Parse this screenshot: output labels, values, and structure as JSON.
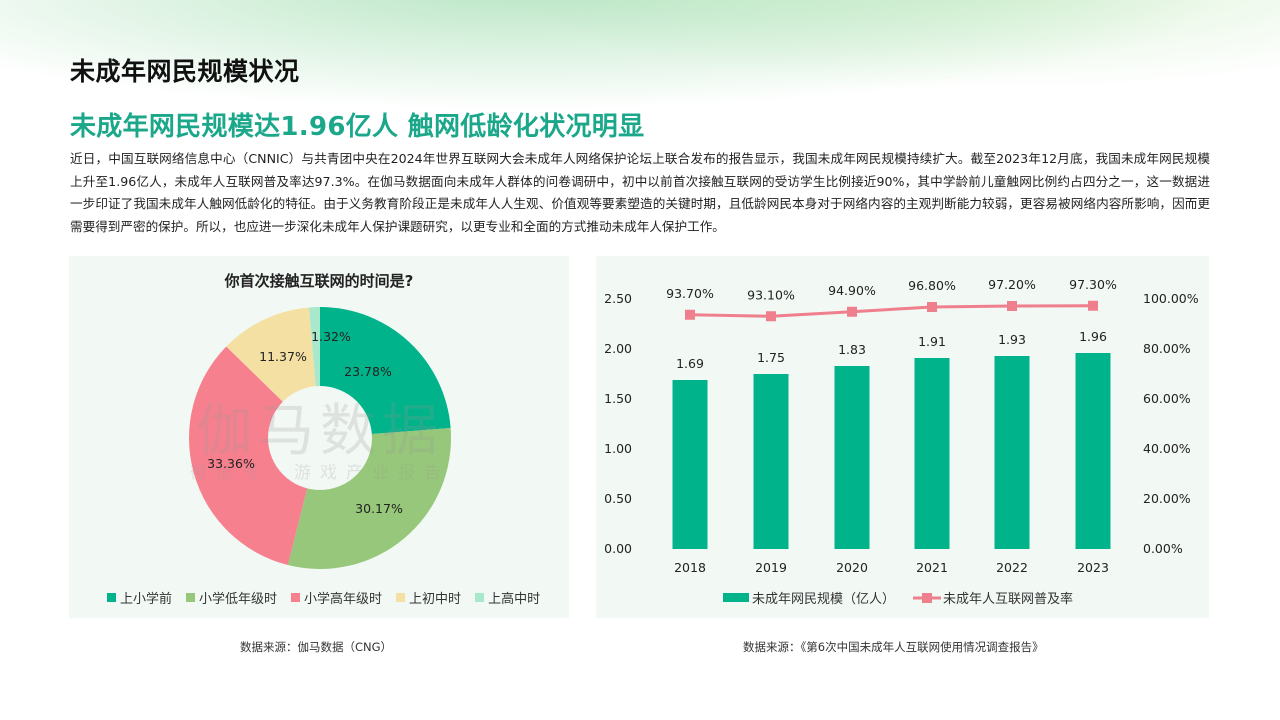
{
  "header": {
    "page_title": "未成年网民规模状况",
    "headline": "未成年网民规模达1.96亿人 触网低龄化状况明显",
    "body": "近日，中国互联网络信息中心（CNNIC）与共青团中央在2024年世界互联网大会未成年人网络保护论坛上联合发布的报告显示，我国未成年网民规模持续扩大。截至2023年12月底，我国未成年网民规模上升至1.96亿人，未成年人互联网普及率达97.3%。在伽马数据面向未成年人群体的问卷调研中，初中以前首次接触互联网的受访学生比例接近90%，其中学龄前儿童触网比例约占四分之一，这一数据进一步印证了我国未成年人触网低龄化的特征。由于义务教育阶段正是未成年人人生观、价值观等要素塑造的关键时期，且低龄网民本身对于网络内容的主观判断能力较弱，更容易被网络内容所影响，因而更需要得到严密的保护。所以，也应进一步深化未成年人保护课题研究，以更专业和全面的方式推动未成年人保护工作。"
  },
  "colors": {
    "accent": "#1aa78a",
    "teal": "#00b38a",
    "green": "#96c77a",
    "pink": "#f7808f",
    "yellow": "#f5e0a3",
    "mint": "#a8e8cc",
    "line": "#f07f8e",
    "panel_bg": "#f2f8f4"
  },
  "watermark": {
    "main": "伽马数据",
    "sub": "微信号：游戏产业报告"
  },
  "chart_data": [
    {
      "type": "pie",
      "title": "你首次接触互联网的时间是?",
      "donut": true,
      "categories": [
        "上小学前",
        "小学低年级时",
        "小学高年级时",
        "上初中时",
        "上高中时"
      ],
      "values": [
        23.78,
        30.17,
        33.36,
        11.37,
        1.32
      ],
      "labels": [
        "23.78%",
        "30.17%",
        "33.36%",
        "11.37%",
        "1.32%"
      ],
      "colors": [
        "#00b38a",
        "#96c77a",
        "#f7808f",
        "#f5e0a3",
        "#a8e8cc"
      ],
      "legend_position": "bottom",
      "source": "数据来源：伽马数据（CNG）"
    },
    {
      "type": "bar",
      "title": "",
      "categories": [
        "2018",
        "2019",
        "2020",
        "2021",
        "2022",
        "2023"
      ],
      "series": [
        {
          "name": "未成年网民规模（亿人）",
          "type": "bar",
          "axis": "left",
          "values": [
            1.69,
            1.75,
            1.83,
            1.91,
            1.93,
            1.96
          ],
          "labels": [
            "1.69",
            "1.75",
            "1.83",
            "1.91",
            "1.93",
            "1.96"
          ],
          "color": "#00b38a"
        },
        {
          "name": "未成年人互联网普及率",
          "type": "line",
          "axis": "right",
          "values": [
            93.7,
            93.1,
            94.9,
            96.8,
            97.2,
            97.3
          ],
          "labels": [
            "93.70%",
            "93.10%",
            "94.90%",
            "96.80%",
            "97.20%",
            "97.30%"
          ],
          "color": "#f07f8e"
        }
      ],
      "y_left": {
        "ticks": [
          "0.00",
          "0.50",
          "1.00",
          "1.50",
          "2.00",
          "2.50"
        ],
        "ylim": [
          0,
          2.5
        ]
      },
      "y_right": {
        "ticks": [
          "0.00%",
          "20.00%",
          "40.00%",
          "60.00%",
          "80.00%",
          "100.00%"
        ],
        "ylim": [
          0,
          100
        ]
      },
      "grid": false,
      "legend_position": "bottom",
      "source": "数据来源：《第6次中国未成年人互联网使用情况调查报告》"
    }
  ]
}
